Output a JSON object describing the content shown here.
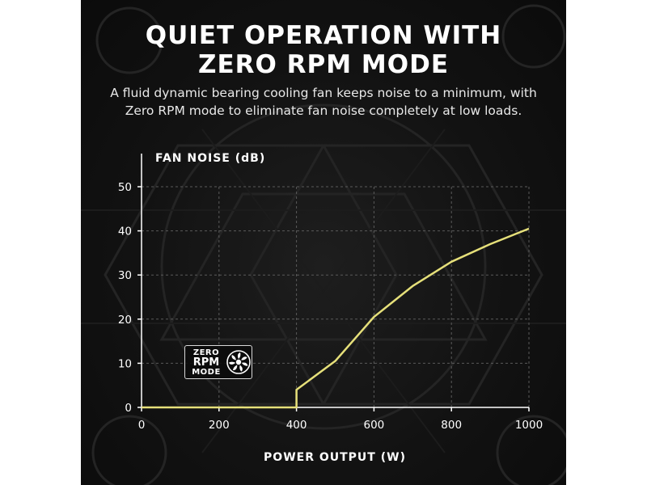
{
  "header": {
    "title_line1": "QUIET OPERATION WITH",
    "title_line2": "ZERO RPM MODE",
    "subtitle_line1": "A fluid dynamic bearing cooling fan keeps noise to a minimum, with",
    "subtitle_line2": "Zero RPM mode to eliminate fan noise completely at low loads."
  },
  "badge": {
    "line1": "ZERO",
    "line2": "RPM",
    "line3": "MODE",
    "icon": "fan-icon"
  },
  "colors": {
    "background": "#121212",
    "line": "#e6e07a",
    "grid": "#5a5a5a",
    "text": "#ffffff"
  },
  "chart_data": {
    "type": "line",
    "ylabel": "FAN NOISE (dB)",
    "xlabel": "POWER OUTPUT (W)",
    "xlim": [
      0,
      1000
    ],
    "ylim": [
      0,
      50
    ],
    "xticks": [
      0,
      200,
      400,
      600,
      800,
      1000
    ],
    "yticks": [
      0,
      10,
      20,
      30,
      40,
      50
    ],
    "grid": "dashed",
    "series": [
      {
        "x": [
          0,
          400,
          400,
          500,
          600,
          700,
          800,
          900,
          1000
        ],
        "y": [
          0,
          0,
          4,
          10.5,
          20.5,
          27.5,
          33,
          37,
          40.5
        ]
      }
    ]
  }
}
